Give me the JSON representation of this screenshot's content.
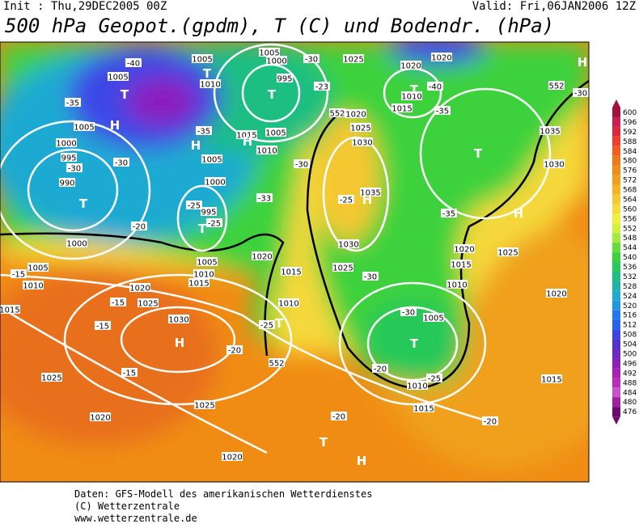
{
  "header": {
    "init": "Init : Thu,29DEC2005 00Z",
    "valid": "Valid: Fri,06JAN2006 12Z",
    "title": "500 hPa Geopot.(gpdm), T (C) und Bodendr. (hPa)"
  },
  "colorbar": {
    "levels": [
      600,
      596,
      592,
      588,
      584,
      580,
      576,
      572,
      568,
      564,
      560,
      556,
      552,
      548,
      544,
      540,
      536,
      532,
      528,
      524,
      520,
      516,
      512,
      508,
      504,
      500,
      496,
      492,
      488,
      484,
      480,
      476
    ],
    "colors": [
      "#a50f3c",
      "#c81e50",
      "#e0283c",
      "#f03c28",
      "#f55a1e",
      "#f07814",
      "#f08c14",
      "#f0a01e",
      "#f5b428",
      "#f5c832",
      "#f5dc3c",
      "#f0f03c",
      "#d2f03c",
      "#a0eb3c",
      "#64dc3c",
      "#3cd23c",
      "#28c85a",
      "#1ebe82",
      "#1eb4aa",
      "#1eaad2",
      "#1e96e6",
      "#1e78f0",
      "#2860f0",
      "#3c46e6",
      "#5032d2",
      "#6e28c8",
      "#8c1ebe",
      "#aa1eb4",
      "#be28be",
      "#c850c8",
      "#a01ea0",
      "#6e0a6e"
    ]
  },
  "map": {
    "labels": [
      "1005",
      "1005",
      "1000",
      "995",
      "1010",
      "1025",
      "1020",
      "1020",
      "-40",
      "1005",
      "-35",
      "1005",
      "1000",
      "995",
      "-30",
      "990",
      "-30",
      "1005",
      "1000",
      "995",
      "-25",
      "-25",
      "-35",
      "1015",
      "1005",
      "1010",
      "-30",
      "-33",
      "-23",
      "-30",
      "1020",
      "1025",
      "1030",
      "1035",
      "-25",
      "-40",
      "1010",
      "1015",
      "-35",
      "1035",
      "1030",
      "-35",
      "1025",
      "1020",
      "1015",
      "1010",
      "1020",
      "1030",
      "1025",
      "-30",
      "-30",
      "1005",
      "-20",
      "1000",
      "1005",
      "1010",
      "-15",
      "1015",
      "1020",
      "1025",
      "-15",
      "-15",
      "1030",
      "-20",
      "1025",
      "-15",
      "1025",
      "1020",
      "1020",
      "1015",
      "-20",
      "1015",
      "-20",
      "1020",
      "1015",
      "1010",
      "-25",
      "1005",
      "1010",
      "1015",
      "-20",
      "-25",
      "1010",
      "552",
      "552",
      "552",
      "-30"
    ],
    "symbols": [
      "T",
      "T",
      "H",
      "T",
      "H",
      "H",
      "T",
      "T",
      "H",
      "T",
      "T",
      "H",
      "H",
      "T",
      "T",
      "H",
      "T",
      "H"
    ]
  },
  "footer": {
    "line1": "Daten: GFS-Modell des amerikanischen Wetterdienstes",
    "line2": "(C) Wetterzentrale",
    "line3": "www.wetterzentrale.de"
  }
}
